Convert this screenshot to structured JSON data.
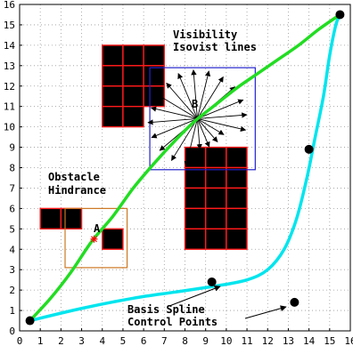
{
  "chart_data": {
    "type": "scatter",
    "xlim": [
      0,
      16
    ],
    "ylim": [
      0,
      16
    ],
    "x_ticks": [
      "0",
      "1",
      "2",
      "3",
      "4",
      "5",
      "6",
      "7",
      "8",
      "9",
      "10",
      "11",
      "12",
      "13",
      "14",
      "15",
      "16"
    ],
    "y_ticks": [
      "0",
      "1",
      "2",
      "3",
      "4",
      "5",
      "6",
      "7",
      "8",
      "9",
      "10",
      "11",
      "12",
      "13",
      "14",
      "15",
      "16"
    ],
    "grid": true,
    "obstacle_cells": [
      [
        4,
        13
      ],
      [
        5,
        13
      ],
      [
        6,
        13
      ],
      [
        4,
        12
      ],
      [
        5,
        12
      ],
      [
        6,
        12
      ],
      [
        4,
        11
      ],
      [
        5,
        11
      ],
      [
        6,
        11
      ],
      [
        4,
        10
      ],
      [
        5,
        10
      ],
      [
        8,
        8
      ],
      [
        9,
        8
      ],
      [
        10,
        8
      ],
      [
        8,
        7
      ],
      [
        9,
        7
      ],
      [
        10,
        7
      ],
      [
        8,
        6
      ],
      [
        9,
        6
      ],
      [
        10,
        6
      ],
      [
        8,
        5
      ],
      [
        9,
        5
      ],
      [
        10,
        5
      ],
      [
        8,
        4
      ],
      [
        9,
        4
      ],
      [
        10,
        4
      ],
      [
        1,
        5
      ],
      [
        2,
        5
      ],
      [
        4,
        4
      ]
    ],
    "boxes": [
      {
        "name": "visibility-box",
        "x": [
          6.3,
          11.4
        ],
        "y": [
          7.9,
          12.9
        ],
        "color": "#2222cc"
      },
      {
        "name": "hindrance-box",
        "x": [
          2.2,
          5.2
        ],
        "y": [
          3.1,
          6.0
        ],
        "color": "#cc7722"
      }
    ],
    "green_path": [
      [
        0.5,
        0.5
      ],
      [
        1.5,
        1.6
      ],
      [
        2.5,
        2.9
      ],
      [
        3.5,
        4.4
      ],
      [
        4.5,
        5.6
      ],
      [
        5.5,
        7.0
      ],
      [
        6.5,
        8.2
      ],
      [
        7.5,
        9.3
      ],
      [
        8.5,
        10.3
      ],
      [
        9.5,
        11.1
      ],
      [
        10.5,
        11.9
      ],
      [
        11.5,
        12.6
      ],
      [
        12.5,
        13.3
      ],
      [
        13.5,
        14.0
      ],
      [
        14.5,
        14.8
      ],
      [
        15.5,
        15.5
      ]
    ],
    "spline_curve": [
      [
        0.5,
        0.5
      ],
      [
        3.0,
        1.1
      ],
      [
        5.5,
        1.6
      ],
      [
        7.5,
        1.9
      ],
      [
        9.5,
        2.2
      ],
      [
        11.0,
        2.5
      ],
      [
        12.0,
        3.0
      ],
      [
        12.8,
        4.0
      ],
      [
        13.4,
        5.5
      ],
      [
        13.9,
        7.5
      ],
      [
        14.3,
        9.5
      ],
      [
        14.7,
        11.5
      ],
      [
        15.0,
        13.5
      ],
      [
        15.3,
        15.0
      ],
      [
        15.5,
        15.5
      ]
    ],
    "control_points": [
      [
        0.5,
        0.5
      ],
      [
        9.3,
        2.4
      ],
      [
        13.3,
        1.4
      ],
      [
        14.0,
        8.9
      ],
      [
        15.5,
        15.5
      ]
    ],
    "label_points": [
      {
        "name": "A",
        "x": 3.6,
        "y": 4.5
      },
      {
        "name": "B",
        "x": 8.6,
        "y": 10.4
      }
    ],
    "annotations": {
      "visibility": [
        "Visibility",
        "Isovist lines"
      ],
      "obstacle": [
        "Obstacle",
        "Hindrance"
      ],
      "spline": [
        "Basis Spline",
        "Control Points"
      ],
      "point_a": "A",
      "point_b": "B"
    },
    "colors": {
      "path": "#22dd22",
      "spline": "#00e5ee",
      "obstacle_fill": "#000000",
      "obstacle_edge": "#ff1a1a",
      "grid": "#9a9a9a",
      "marker": "#ff0000"
    }
  }
}
